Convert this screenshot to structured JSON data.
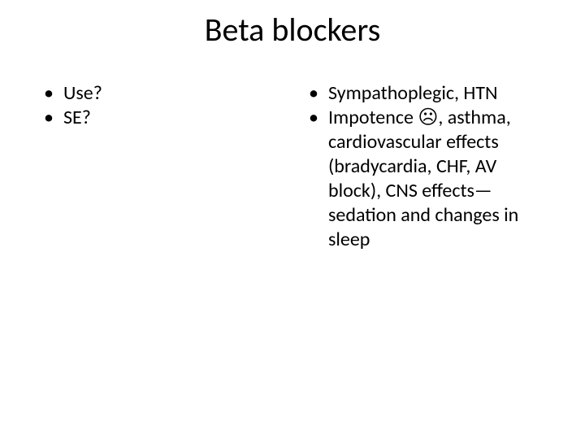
{
  "title": "Beta blockers",
  "left": {
    "items": [
      "Use?",
      "SE?"
    ]
  },
  "right": {
    "items": [
      "Sympathoplegic, HTN",
      "Impotence ☹, asthma, cardiovascular effects (bradycardia, CHF, AV block), CNS effects—sedation and changes in sleep"
    ]
  },
  "style": {
    "background_color": "#ffffff",
    "text_color": "#000000",
    "title_fontsize": 40,
    "body_fontsize": 24,
    "bullet_char": "•"
  }
}
